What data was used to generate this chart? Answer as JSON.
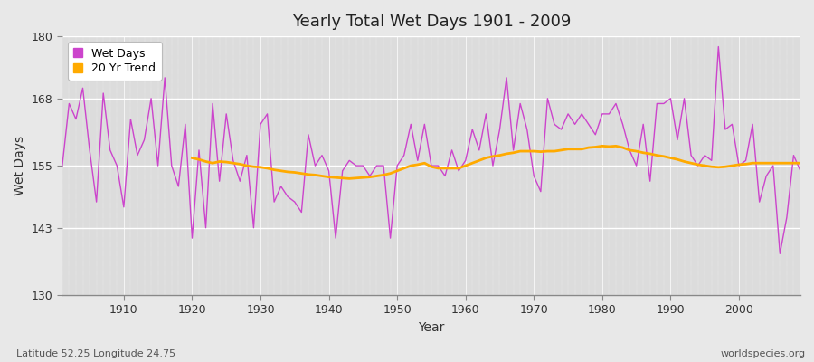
{
  "title": "Yearly Total Wet Days 1901 - 2009",
  "xlabel": "Year",
  "ylabel": "Wet Days",
  "xlim": [
    1901,
    2009
  ],
  "ylim": [
    130,
    180
  ],
  "yticks": [
    130,
    143,
    155,
    168,
    180
  ],
  "xticks": [
    1910,
    1920,
    1930,
    1940,
    1950,
    1960,
    1970,
    1980,
    1990,
    2000
  ],
  "wet_days_color": "#cc44cc",
  "trend_color": "#ffaa00",
  "bg_color": "#e8e8e8",
  "plot_bg_color": "#dcdcdc",
  "grid_color": "#ffffff",
  "bottom_left_text": "Latitude 52.25 Longitude 24.75",
  "bottom_right_text": "worldspecies.org",
  "legend_wet": "Wet Days",
  "legend_trend": "20 Yr Trend",
  "years": [
    1901,
    1902,
    1903,
    1904,
    1905,
    1906,
    1907,
    1908,
    1909,
    1910,
    1911,
    1912,
    1913,
    1914,
    1915,
    1916,
    1917,
    1918,
    1919,
    1920,
    1921,
    1922,
    1923,
    1924,
    1925,
    1926,
    1927,
    1928,
    1929,
    1930,
    1931,
    1932,
    1933,
    1934,
    1935,
    1936,
    1937,
    1938,
    1939,
    1940,
    1941,
    1942,
    1943,
    1944,
    1945,
    1946,
    1947,
    1948,
    1949,
    1950,
    1951,
    1952,
    1953,
    1954,
    1955,
    1956,
    1957,
    1958,
    1959,
    1960,
    1961,
    1962,
    1963,
    1964,
    1965,
    1966,
    1967,
    1968,
    1969,
    1970,
    1971,
    1972,
    1973,
    1974,
    1975,
    1976,
    1977,
    1978,
    1979,
    1980,
    1981,
    1982,
    1983,
    1984,
    1985,
    1986,
    1987,
    1988,
    1989,
    1990,
    1991,
    1992,
    1993,
    1994,
    1995,
    1996,
    1997,
    1998,
    1999,
    2000,
    2001,
    2002,
    2003,
    2004,
    2005,
    2006,
    2007,
    2008,
    2009
  ],
  "wet_days": [
    155,
    167,
    164,
    170,
    158,
    148,
    169,
    158,
    155,
    147,
    164,
    157,
    160,
    168,
    155,
    172,
    155,
    151,
    163,
    141,
    158,
    143,
    167,
    152,
    165,
    156,
    152,
    157,
    143,
    163,
    165,
    148,
    151,
    149,
    148,
    146,
    161,
    155,
    157,
    154,
    141,
    154,
    156,
    155,
    155,
    153,
    155,
    155,
    141,
    155,
    157,
    163,
    156,
    163,
    155,
    155,
    153,
    158,
    154,
    156,
    162,
    158,
    165,
    155,
    162,
    172,
    158,
    167,
    162,
    153,
    150,
    168,
    163,
    162,
    165,
    163,
    165,
    163,
    161,
    165,
    165,
    167,
    163,
    158,
    155,
    163,
    152,
    167,
    167,
    168,
    160,
    168,
    157,
    155,
    157,
    156,
    178,
    162,
    163,
    155,
    156,
    163,
    148,
    153,
    155,
    138,
    145,
    157,
    154
  ],
  "trend": [
    null,
    null,
    null,
    null,
    null,
    null,
    null,
    null,
    null,
    null,
    null,
    null,
    null,
    null,
    null,
    null,
    null,
    null,
    null,
    156.5,
    156.2,
    155.8,
    155.5,
    155.8,
    155.7,
    155.5,
    155.3,
    155.0,
    154.8,
    154.7,
    154.5,
    154.2,
    154.0,
    153.8,
    153.7,
    153.5,
    153.3,
    153.2,
    153.0,
    152.8,
    152.7,
    152.6,
    152.5,
    152.6,
    152.7,
    152.8,
    153.0,
    153.2,
    153.5,
    154.0,
    154.5,
    155.0,
    155.2,
    155.5,
    154.8,
    154.5,
    154.5,
    154.5,
    154.5,
    155.0,
    155.5,
    156.0,
    156.5,
    156.8,
    157.0,
    157.3,
    157.5,
    157.8,
    157.8,
    157.8,
    157.7,
    157.8,
    157.8,
    158.0,
    158.2,
    158.2,
    158.2,
    158.5,
    158.6,
    158.8,
    158.7,
    158.8,
    158.5,
    158.0,
    157.8,
    157.5,
    157.3,
    157.0,
    156.8,
    156.5,
    156.2,
    155.8,
    155.5,
    155.2,
    155.0,
    154.8,
    154.7,
    154.8,
    155.0,
    155.2,
    155.3,
    155.5,
    155.5,
    155.5,
    155.5,
    155.5,
    155.5,
    155.5,
    155.5
  ]
}
